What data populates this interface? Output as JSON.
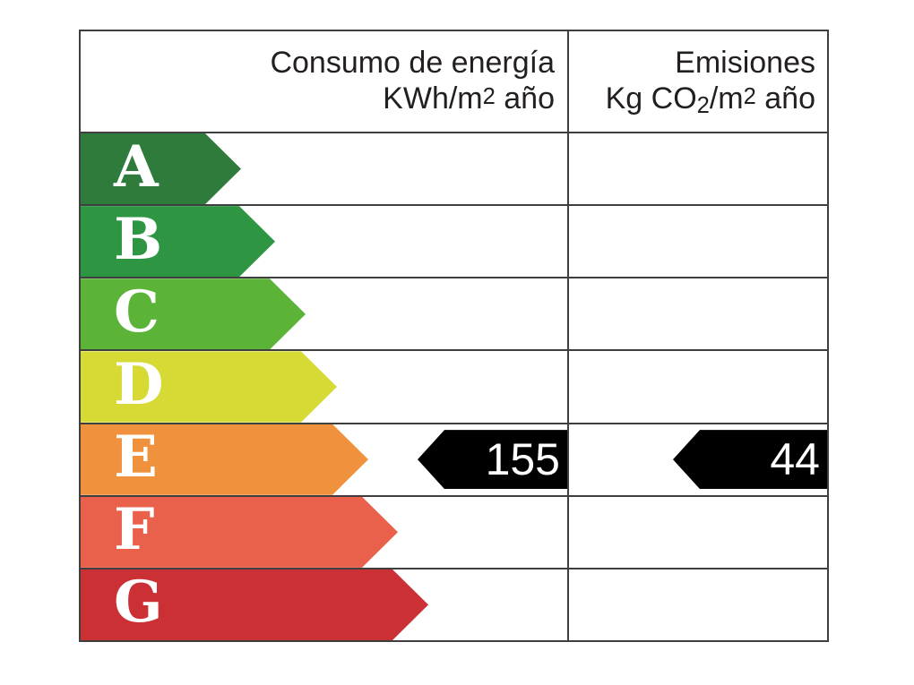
{
  "header": {
    "consumption": {
      "line1": "Consumo de energía",
      "line2_base": "KWh/m",
      "line2_sup": "2",
      "line2_tail": " año"
    },
    "emissions": {
      "line1": "Emisiones",
      "line2_base": "Kg CO",
      "line2_sub": "2",
      "line2_mid": "/m",
      "line2_sup": "2",
      "line2_tail": " año"
    }
  },
  "scale": {
    "letter_color": "#ffffff",
    "line_color": "#3f3f3f",
    "ratings": [
      {
        "letter": "A",
        "color": "#2e7b3c",
        "arrow_length": 179
      },
      {
        "letter": "B",
        "color": "#2e9643",
        "arrow_length": 217
      },
      {
        "letter": "C",
        "color": "#5bb337",
        "arrow_length": 251
      },
      {
        "letter": "D",
        "color": "#d7da35",
        "arrow_length": 286
      },
      {
        "letter": "E",
        "color": "#f0913d",
        "arrow_length": 321
      },
      {
        "letter": "F",
        "color": "#ea614b",
        "arrow_length": 354
      },
      {
        "letter": "G",
        "color": "#cb3034",
        "arrow_length": 388
      }
    ]
  },
  "result": {
    "rating_letter": "E",
    "consumption_value": "155",
    "emissions_value": "44",
    "arrow_color": "#000000",
    "text_color": "#ffffff"
  },
  "chart_data": {
    "type": "table",
    "title": "Energy efficiency rating scale",
    "columns": [
      "Consumo de energía KWh/m2 año",
      "Emisiones Kg CO2/m2 año"
    ],
    "scale": [
      "A",
      "B",
      "C",
      "D",
      "E",
      "F",
      "G"
    ],
    "current_rating": "E",
    "consumption_kwh_m2_year": 155,
    "emissions_kg_co2_m2_year": 44,
    "legend_position": "none",
    "grid": true
  }
}
